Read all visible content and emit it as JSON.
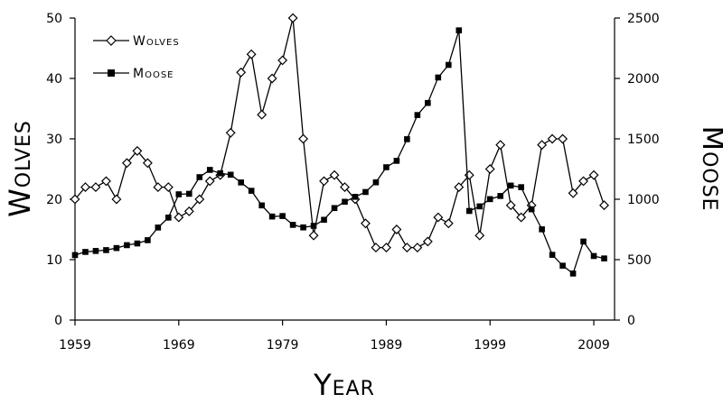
{
  "chart_data": {
    "type": "line",
    "x_axis": {
      "label": "Year",
      "range": [
        1959,
        2011
      ],
      "ticks": [
        1959,
        1969,
        1979,
        1989,
        1999,
        2009
      ],
      "tick_labels": [
        "1959",
        "1969",
        "1979",
        "1989",
        "1999",
        "2009"
      ]
    },
    "y_axis_left": {
      "label": "Wolves",
      "range": [
        0,
        50
      ],
      "ticks": [
        0,
        10,
        20,
        30,
        40,
        50
      ],
      "tick_labels": [
        "0",
        "10",
        "20",
        "30",
        "40",
        "50"
      ]
    },
    "y_axis_right": {
      "label": "Moose",
      "range": [
        0,
        2500
      ],
      "ticks": [
        0,
        500,
        1000,
        1500,
        2000,
        2500
      ],
      "tick_labels": [
        "0",
        "500",
        "1000",
        "1500",
        "2000",
        "2500"
      ]
    },
    "grid": false,
    "legend_position": "top-left",
    "series": [
      {
        "name": "Wolves",
        "axis": "left",
        "marker": "open-diamond",
        "color": "#000000",
        "x": [
          1959,
          1960,
          1961,
          1962,
          1963,
          1964,
          1965,
          1966,
          1967,
          1968,
          1969,
          1970,
          1971,
          1972,
          1973,
          1974,
          1975,
          1976,
          1977,
          1978,
          1979,
          1980,
          1981,
          1982,
          1983,
          1984,
          1985,
          1986,
          1987,
          1988,
          1989,
          1990,
          1991,
          1992,
          1993,
          1994,
          1995,
          1996,
          1997,
          1998,
          1999,
          2000,
          2001,
          2002,
          2003,
          2004,
          2005,
          2006,
          2007,
          2008,
          2009,
          2010
        ],
        "y": [
          20,
          22,
          22,
          23,
          20,
          26,
          28,
          26,
          22,
          22,
          17,
          18,
          20,
          23,
          24,
          31,
          41,
          44,
          34,
          40,
          43,
          50,
          30,
          14,
          23,
          24,
          22,
          20,
          16,
          12,
          12,
          15,
          12,
          12,
          13,
          17,
          16,
          22,
          24,
          14,
          25,
          29,
          19,
          17,
          19,
          29,
          30,
          30,
          21,
          23,
          24,
          19
        ]
      },
      {
        "name": "Moose",
        "axis": "right",
        "marker": "filled-square",
        "color": "#000000",
        "x": [
          1959,
          1960,
          1961,
          1962,
          1963,
          1964,
          1965,
          1966,
          1967,
          1968,
          1969,
          1970,
          1971,
          1972,
          1973,
          1974,
          1975,
          1976,
          1977,
          1978,
          1979,
          1980,
          1981,
          1982,
          1983,
          1984,
          1985,
          1986,
          1987,
          1988,
          1989,
          1990,
          1991,
          1992,
          1993,
          1994,
          1995,
          1996,
          1997,
          1998,
          1999,
          2000,
          2001,
          2002,
          2003,
          2004,
          2005,
          2006,
          2007,
          2008,
          2009,
          2010
        ],
        "y": [
          538,
          564,
          572,
          579,
          596,
          620,
          634,
          661,
          766,
          848,
          1041,
          1045,
          1183,
          1243,
          1215,
          1203,
          1139,
          1070,
          949,
          857,
          861,
          788,
          767,
          780,
          830,
          927,
          979,
          1020,
          1060,
          1140,
          1265,
          1318,
          1497,
          1697,
          1797,
          2008,
          2112,
          2398,
          903,
          941,
          1001,
          1027,
          1113,
          1100,
          917,
          751,
          540,
          450,
          385,
          650,
          530,
          510
        ]
      }
    ]
  }
}
